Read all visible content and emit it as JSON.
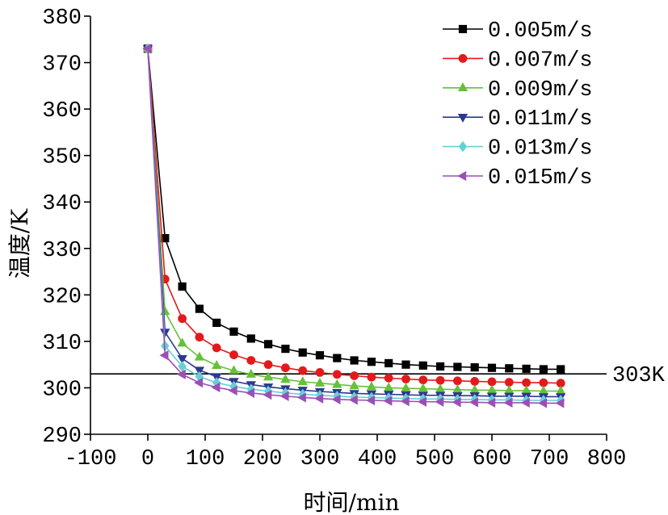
{
  "chart_data": {
    "type": "line",
    "xlabel": "时间/min",
    "ylabel": "温度/K",
    "xlim": [
      -100,
      800
    ],
    "ylim": [
      290,
      380
    ],
    "xticks": [
      -100,
      0,
      100,
      200,
      300,
      400,
      500,
      600,
      700,
      800
    ],
    "yticks": [
      290,
      300,
      310,
      320,
      330,
      340,
      350,
      360,
      370,
      380
    ],
    "grid": false,
    "legend": "top-right",
    "x": [
      0,
      30,
      60,
      90,
      120,
      150,
      180,
      210,
      240,
      270,
      300,
      330,
      360,
      390,
      420,
      450,
      480,
      510,
      540,
      570,
      600,
      630,
      660,
      690,
      720
    ],
    "series": [
      {
        "name": "0.005m/s",
        "color": "#000000",
        "marker": "square",
        "values": [
          373,
          332.2,
          321.8,
          317.0,
          314.0,
          312.1,
          310.6,
          309.4,
          308.4,
          307.6,
          307.0,
          306.4,
          305.9,
          305.6,
          305.3,
          305.0,
          304.8,
          304.6,
          304.5,
          304.4,
          304.3,
          304.2,
          304.1,
          304.0,
          304.0
        ]
      },
      {
        "name": "0.007m/s",
        "color": "#e31a1c",
        "marker": "circle",
        "values": [
          373,
          323.4,
          314.9,
          310.9,
          308.6,
          307.1,
          305.9,
          305.0,
          304.3,
          303.7,
          303.3,
          302.9,
          302.6,
          302.3,
          302.1,
          301.9,
          301.7,
          301.6,
          301.5,
          301.4,
          301.3,
          301.2,
          301.1,
          301.1,
          301.0
        ]
      },
      {
        "name": "0.009m/s",
        "color": "#66c03a",
        "marker": "triangle-up",
        "values": [
          373,
          316.4,
          309.6,
          306.6,
          304.8,
          303.7,
          302.9,
          302.3,
          301.8,
          301.3,
          301.0,
          300.7,
          300.4,
          300.2,
          300.0,
          299.9,
          299.8,
          299.7,
          299.6,
          299.5,
          299.5,
          299.4,
          299.4,
          299.3,
          299.3
        ]
      },
      {
        "name": "0.011m/s",
        "color": "#2b3990",
        "marker": "triangle-down",
        "values": [
          373,
          312.0,
          306.3,
          303.8,
          302.4,
          301.4,
          300.7,
          300.2,
          299.8,
          299.5,
          299.2,
          299.0,
          298.8,
          298.7,
          298.6,
          298.5,
          298.4,
          298.4,
          298.3,
          298.3,
          298.2,
          298.2,
          298.2,
          298.1,
          298.1
        ]
      },
      {
        "name": "0.013m/s",
        "color": "#66cfd6",
        "marker": "diamond",
        "values": [
          373,
          309.0,
          304.6,
          302.4,
          301.1,
          300.3,
          299.7,
          299.3,
          298.9,
          298.6,
          298.4,
          298.2,
          298.0,
          297.9,
          297.8,
          297.7,
          297.6,
          297.6,
          297.5,
          297.5,
          297.4,
          297.4,
          297.3,
          297.3,
          297.3
        ]
      },
      {
        "name": "0.015m/s",
        "color": "#9b4fb6",
        "marker": "triangle-left",
        "values": [
          373,
          307.0,
          302.9,
          301.1,
          300.1,
          299.4,
          298.9,
          298.5,
          298.2,
          297.9,
          297.7,
          297.5,
          297.4,
          297.3,
          297.2,
          297.1,
          297.0,
          297.0,
          296.9,
          296.9,
          296.8,
          296.8,
          296.8,
          296.7,
          296.7
        ]
      }
    ],
    "reference_line": {
      "y": 303,
      "label": "303K",
      "color": "#000000"
    }
  }
}
